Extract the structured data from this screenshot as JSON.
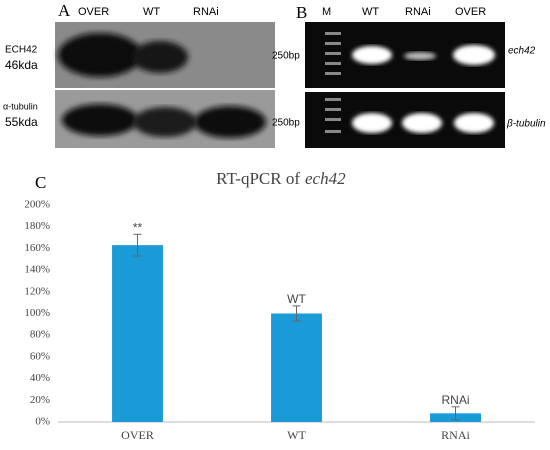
{
  "panel_a": {
    "label": "A",
    "lanes": [
      "OVER",
      "WT",
      "RNAi"
    ],
    "rows": [
      {
        "name": "ECH42",
        "size": "46kda"
      },
      {
        "name": "α-tubulin",
        "size": "55kda"
      }
    ]
  },
  "panel_b": {
    "label": "B",
    "lanes": [
      "M",
      "WT",
      "RNAi",
      "OVER"
    ],
    "rows": [
      {
        "marker": "250bp",
        "gene": "ech42"
      },
      {
        "marker": "250bp",
        "gene": "β-tubulin"
      }
    ]
  },
  "chart_data": {
    "type": "bar",
    "panel_label": "C",
    "title": "RT-qPCR of",
    "title_gene": "ech42",
    "categories": [
      "OVER",
      "WT",
      "RNAi"
    ],
    "values": [
      163,
      100,
      8
    ],
    "errors": [
      10,
      7,
      6
    ],
    "annotations": [
      "**",
      "WT",
      "RNAi"
    ],
    "color": "#1a9ad6",
    "ylim": [
      0,
      200
    ],
    "yticks": [
      {
        "value": 0,
        "label": "0%"
      },
      {
        "value": 20,
        "label": "20%"
      },
      {
        "value": 40,
        "label": "40%"
      },
      {
        "value": 60,
        "label": "60%"
      },
      {
        "value": 80,
        "label": "80%"
      },
      {
        "value": 100,
        "label": "100%"
      },
      {
        "value": 120,
        "label": "120%"
      },
      {
        "value": 140,
        "label": "140%"
      },
      {
        "value": 160,
        "label": "160%"
      },
      {
        "value": 180,
        "label": "180%"
      },
      {
        "value": 200,
        "label": "200%"
      }
    ],
    "grid": false
  }
}
